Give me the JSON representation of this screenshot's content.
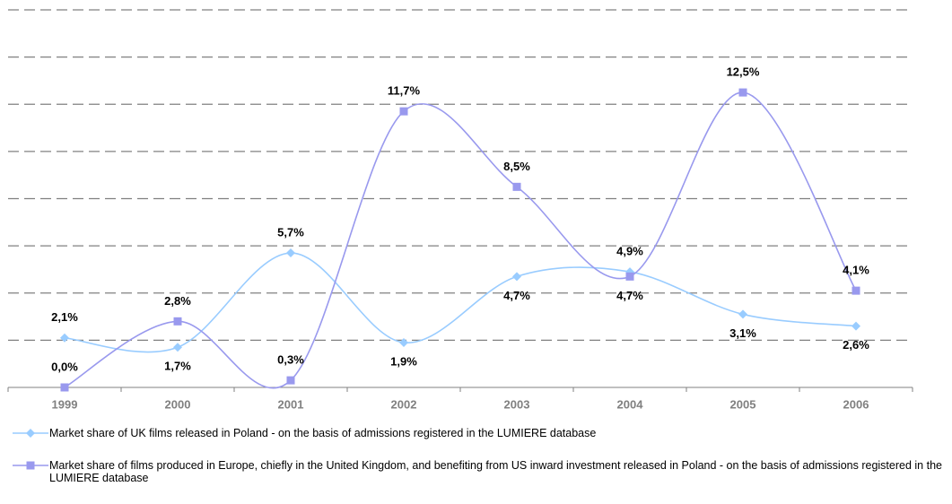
{
  "chart_data": {
    "type": "line",
    "categories": [
      "1999",
      "2000",
      "2001",
      "2002",
      "2003",
      "2004",
      "2005",
      "2006"
    ],
    "series": [
      {
        "name": "Market share of UK films released in Poland - on the basis of admissions registered in the LUMIERE database",
        "color": "#99ccff",
        "marker": "diamond",
        "values": [
          2.1,
          1.7,
          5.7,
          1.9,
          4.7,
          4.9,
          3.1,
          2.6
        ],
        "value_labels": [
          "2,1%",
          "1,7%",
          "5,7%",
          "1,9%",
          "4,7%",
          "4,9%",
          "3,1%",
          "2,6%"
        ]
      },
      {
        "name": "Market share of films produced in Europe, chiefly in the United Kingdom, and benefiting from US inward investment released in Poland - on the basis of admissions registered in the LUMIERE database",
        "color": "#9999ee",
        "marker": "square",
        "values": [
          0.0,
          2.8,
          0.3,
          11.7,
          8.5,
          4.7,
          12.5,
          4.1
        ],
        "value_labels": [
          "0,0%",
          "2,8%",
          "0,3%",
          "11,7%",
          "8,5%",
          "4,7%",
          "12,5%",
          "4,1%"
        ]
      }
    ],
    "ylim": [
      0,
      16
    ],
    "yticks": [
      0,
      2,
      4,
      6,
      8,
      10,
      12,
      14,
      16
    ],
    "grid": true,
    "smooth": true
  }
}
